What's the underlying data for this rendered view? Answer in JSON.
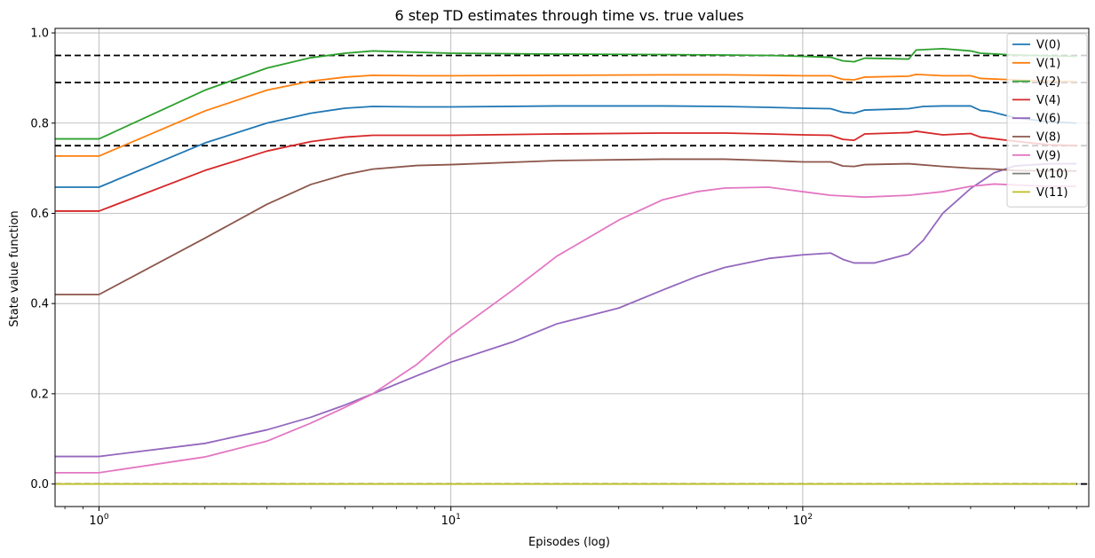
{
  "chart_data": {
    "type": "line",
    "title": "6 step TD estimates through time vs. true values",
    "xlabel": "Episodes (log)",
    "ylabel": "State value function",
    "xscale": "log",
    "xlim": [
      0.75,
      650
    ],
    "ylim": [
      -0.05,
      1.01
    ],
    "grid": true,
    "legend_position": "top-right",
    "xticks": [
      {
        "value": 1,
        "base": "10",
        "exp": "0"
      },
      {
        "value": 10,
        "base": "10",
        "exp": "1"
      },
      {
        "value": 100,
        "base": "10",
        "exp": "2"
      }
    ],
    "yticks": [
      0.0,
      0.2,
      0.4,
      0.6,
      0.8,
      1.0
    ],
    "ytick_labels": [
      "0.0",
      "0.2",
      "0.4",
      "0.6",
      "0.8",
      "1.0"
    ],
    "true_values": [
      0.95,
      0.89,
      0.75,
      0.0
    ],
    "series": [
      {
        "name": "V(0)",
        "color": "#1f77b4",
        "points": [
          [
            0.5,
            0.658
          ],
          [
            1,
            0.658
          ],
          [
            2,
            0.756
          ],
          [
            3,
            0.8
          ],
          [
            4,
            0.822
          ],
          [
            5,
            0.833
          ],
          [
            6,
            0.837
          ],
          [
            8,
            0.836
          ],
          [
            10,
            0.836
          ],
          [
            20,
            0.838
          ],
          [
            40,
            0.838
          ],
          [
            60,
            0.837
          ],
          [
            80,
            0.835
          ],
          [
            100,
            0.833
          ],
          [
            120,
            0.832
          ],
          [
            130,
            0.824
          ],
          [
            140,
            0.822
          ],
          [
            150,
            0.829
          ],
          [
            200,
            0.832
          ],
          [
            220,
            0.837
          ],
          [
            250,
            0.838
          ],
          [
            300,
            0.838
          ],
          [
            320,
            0.828
          ],
          [
            340,
            0.826
          ],
          [
            400,
            0.812
          ],
          [
            500,
            0.803
          ],
          [
            600,
            0.8
          ]
        ]
      },
      {
        "name": "V(1)",
        "color": "#ff7f0e",
        "points": [
          [
            0.5,
            0.727
          ],
          [
            1,
            0.727
          ],
          [
            2,
            0.827
          ],
          [
            3,
            0.873
          ],
          [
            4,
            0.893
          ],
          [
            5,
            0.902
          ],
          [
            6,
            0.906
          ],
          [
            8,
            0.905
          ],
          [
            10,
            0.905
          ],
          [
            20,
            0.906
          ],
          [
            40,
            0.907
          ],
          [
            60,
            0.907
          ],
          [
            80,
            0.906
          ],
          [
            100,
            0.905
          ],
          [
            120,
            0.905
          ],
          [
            130,
            0.897
          ],
          [
            140,
            0.896
          ],
          [
            150,
            0.902
          ],
          [
            200,
            0.904
          ],
          [
            210,
            0.908
          ],
          [
            250,
            0.905
          ],
          [
            300,
            0.905
          ],
          [
            320,
            0.899
          ],
          [
            400,
            0.896
          ],
          [
            500,
            0.893
          ],
          [
            600,
            0.892
          ]
        ]
      },
      {
        "name": "V(2)",
        "color": "#2ca02c",
        "points": [
          [
            0.5,
            0.765
          ],
          [
            1,
            0.765
          ],
          [
            2,
            0.873
          ],
          [
            3,
            0.922
          ],
          [
            4,
            0.945
          ],
          [
            5,
            0.955
          ],
          [
            6,
            0.96
          ],
          [
            8,
            0.957
          ],
          [
            10,
            0.955
          ],
          [
            20,
            0.953
          ],
          [
            40,
            0.952
          ],
          [
            60,
            0.951
          ],
          [
            80,
            0.95
          ],
          [
            100,
            0.948
          ],
          [
            120,
            0.946
          ],
          [
            130,
            0.938
          ],
          [
            140,
            0.936
          ],
          [
            150,
            0.944
          ],
          [
            200,
            0.942
          ],
          [
            210,
            0.962
          ],
          [
            250,
            0.965
          ],
          [
            300,
            0.96
          ],
          [
            320,
            0.955
          ],
          [
            400,
            0.951
          ],
          [
            500,
            0.949
          ],
          [
            600,
            0.948
          ]
        ]
      },
      {
        "name": "V(4)",
        "color": "#d62728",
        "points": [
          [
            0.5,
            0.605
          ],
          [
            1,
            0.605
          ],
          [
            2,
            0.695
          ],
          [
            3,
            0.738
          ],
          [
            4,
            0.759
          ],
          [
            5,
            0.769
          ],
          [
            6,
            0.773
          ],
          [
            8,
            0.773
          ],
          [
            10,
            0.773
          ],
          [
            20,
            0.776
          ],
          [
            40,
            0.778
          ],
          [
            60,
            0.778
          ],
          [
            80,
            0.776
          ],
          [
            100,
            0.774
          ],
          [
            120,
            0.773
          ],
          [
            130,
            0.764
          ],
          [
            140,
            0.762
          ],
          [
            150,
            0.776
          ],
          [
            200,
            0.779
          ],
          [
            210,
            0.782
          ],
          [
            250,
            0.774
          ],
          [
            300,
            0.777
          ],
          [
            320,
            0.769
          ],
          [
            400,
            0.76
          ],
          [
            500,
            0.752
          ],
          [
            600,
            0.75
          ]
        ]
      },
      {
        "name": "V(6)",
        "color": "#9467bd",
        "points": [
          [
            0.5,
            0.061
          ],
          [
            1,
            0.061
          ],
          [
            2,
            0.09
          ],
          [
            3,
            0.12
          ],
          [
            4,
            0.148
          ],
          [
            5,
            0.175
          ],
          [
            6,
            0.2
          ],
          [
            8,
            0.24
          ],
          [
            10,
            0.27
          ],
          [
            15,
            0.315
          ],
          [
            20,
            0.355
          ],
          [
            30,
            0.39
          ],
          [
            40,
            0.43
          ],
          [
            50,
            0.46
          ],
          [
            60,
            0.48
          ],
          [
            80,
            0.5
          ],
          [
            100,
            0.508
          ],
          [
            120,
            0.512
          ],
          [
            130,
            0.498
          ],
          [
            140,
            0.49
          ],
          [
            160,
            0.49
          ],
          [
            200,
            0.51
          ],
          [
            220,
            0.54
          ],
          [
            250,
            0.6
          ],
          [
            300,
            0.655
          ],
          [
            350,
            0.69
          ],
          [
            400,
            0.705
          ],
          [
            500,
            0.71
          ],
          [
            600,
            0.71
          ]
        ]
      },
      {
        "name": "V(8)",
        "color": "#8c564b",
        "points": [
          [
            0.5,
            0.42
          ],
          [
            1,
            0.42
          ],
          [
            2,
            0.545
          ],
          [
            3,
            0.62
          ],
          [
            4,
            0.664
          ],
          [
            5,
            0.686
          ],
          [
            6,
            0.698
          ],
          [
            8,
            0.706
          ],
          [
            10,
            0.708
          ],
          [
            20,
            0.717
          ],
          [
            40,
            0.72
          ],
          [
            60,
            0.72
          ],
          [
            80,
            0.717
          ],
          [
            100,
            0.714
          ],
          [
            120,
            0.714
          ],
          [
            130,
            0.705
          ],
          [
            140,
            0.704
          ],
          [
            150,
            0.708
          ],
          [
            200,
            0.71
          ],
          [
            250,
            0.704
          ],
          [
            300,
            0.7
          ],
          [
            350,
            0.698
          ],
          [
            400,
            0.695
          ],
          [
            500,
            0.694
          ],
          [
            600,
            0.694
          ]
        ]
      },
      {
        "name": "V(9)",
        "color": "#e377c2",
        "points": [
          [
            0.5,
            0.025
          ],
          [
            1,
            0.025
          ],
          [
            2,
            0.06
          ],
          [
            3,
            0.095
          ],
          [
            4,
            0.135
          ],
          [
            5,
            0.17
          ],
          [
            6,
            0.2
          ],
          [
            8,
            0.265
          ],
          [
            10,
            0.33
          ],
          [
            15,
            0.43
          ],
          [
            20,
            0.505
          ],
          [
            30,
            0.585
          ],
          [
            40,
            0.63
          ],
          [
            50,
            0.648
          ],
          [
            60,
            0.656
          ],
          [
            80,
            0.658
          ],
          [
            100,
            0.648
          ],
          [
            120,
            0.64
          ],
          [
            150,
            0.636
          ],
          [
            200,
            0.64
          ],
          [
            250,
            0.648
          ],
          [
            300,
            0.66
          ],
          [
            350,
            0.665
          ],
          [
            400,
            0.663
          ],
          [
            500,
            0.66
          ],
          [
            600,
            0.66
          ]
        ]
      },
      {
        "name": "V(10)",
        "color": "#7f7f7f",
        "points": []
      },
      {
        "name": "V(11)",
        "color": "#bcbd22",
        "points": [
          [
            0.5,
            0.0
          ],
          [
            600,
            0.0
          ]
        ]
      }
    ]
  }
}
